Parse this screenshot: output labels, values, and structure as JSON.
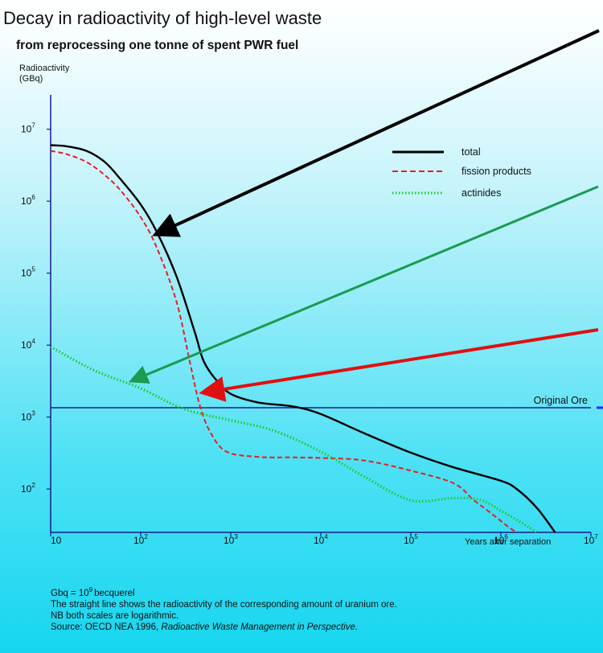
{
  "chart_data": {
    "type": "line",
    "title": "Decay in radioactivity of high-level waste",
    "subtitle": "from reprocessing one tonne of spent PWR fuel",
    "ylabel": [
      "Radioactivity",
      "(GBq)"
    ],
    "xlabel": "Years after separation",
    "x_scale": "log",
    "y_scale": "log",
    "xlim": [
      10,
      10000000
    ],
    "ylim": [
      25,
      30000000
    ],
    "x_ticks": [
      {
        "base": "10",
        "exp": ""
      },
      {
        "base": "10",
        "exp": "2"
      },
      {
        "base": "10",
        "exp": "3"
      },
      {
        "base": "10",
        "exp": "4"
      },
      {
        "base": "10",
        "exp": "5"
      },
      {
        "base": "10",
        "exp": "6"
      },
      {
        "base": "10",
        "exp": "7"
      }
    ],
    "y_ticks": [
      {
        "base": "10",
        "exp": "2"
      },
      {
        "base": "10",
        "exp": "3"
      },
      {
        "base": "10",
        "exp": "4"
      },
      {
        "base": "10",
        "exp": "5"
      },
      {
        "base": "10",
        "exp": "6"
      },
      {
        "base": "10",
        "exp": "7"
      }
    ],
    "series": [
      {
        "name": "total",
        "color": "#000000",
        "style": "solid",
        "points": [
          [
            10,
            6000000
          ],
          [
            15,
            5800000
          ],
          [
            25,
            5000000
          ],
          [
            40,
            3500000
          ],
          [
            60,
            2000000
          ],
          [
            100,
            900000
          ],
          [
            150,
            380000
          ],
          [
            250,
            90000
          ],
          [
            400,
            15000
          ],
          [
            500,
            6000
          ],
          [
            700,
            3200
          ],
          [
            1000,
            2100
          ],
          [
            2000,
            1600
          ],
          [
            5000,
            1400
          ],
          [
            10000,
            1100
          ],
          [
            30000,
            600
          ],
          [
            100000,
            320
          ],
          [
            300000,
            200
          ],
          [
            1000000,
            130
          ],
          [
            1500000,
            100
          ],
          [
            2500000,
            55
          ],
          [
            4000000,
            25
          ]
        ]
      },
      {
        "name": "fission products",
        "color": "#e62020",
        "style": "dashed",
        "points": [
          [
            10,
            5000000
          ],
          [
            15,
            4500000
          ],
          [
            25,
            3500000
          ],
          [
            40,
            2300000
          ],
          [
            60,
            1400000
          ],
          [
            100,
            600000
          ],
          [
            150,
            230000
          ],
          [
            250,
            40000
          ],
          [
            350,
            6000
          ],
          [
            450,
            1500
          ],
          [
            600,
            600
          ],
          [
            900,
            330
          ],
          [
            2000,
            280
          ],
          [
            5000,
            275
          ],
          [
            10000,
            270
          ],
          [
            30000,
            250
          ],
          [
            100000,
            180
          ],
          [
            300000,
            120
          ],
          [
            500000,
            70
          ],
          [
            800000,
            45
          ],
          [
            1200000,
            30
          ],
          [
            1500000,
            25
          ]
        ]
      },
      {
        "name": "actinides",
        "color": "#1ccc22",
        "style": "dotted",
        "points": [
          [
            10,
            9500
          ],
          [
            30,
            4500
          ],
          [
            100,
            2500
          ],
          [
            300,
            1300
          ],
          [
            1000,
            900
          ],
          [
            3000,
            650
          ],
          [
            10000,
            330
          ],
          [
            30000,
            150
          ],
          [
            100000,
            70
          ],
          [
            300000,
            75
          ],
          [
            600000,
            70
          ],
          [
            1000000,
            50
          ],
          [
            2000000,
            30
          ],
          [
            2500000,
            25
          ]
        ]
      }
    ],
    "reference_line": {
      "label": "Original Ore",
      "y": 1350,
      "color": "#1a1a8c"
    },
    "arrows": [
      {
        "name": "black",
        "color": "#000000",
        "tip": [
          150,
          350000
        ]
      },
      {
        "name": "green",
        "color": "#1a9b50",
        "tip": [
          80,
          3200
        ]
      },
      {
        "name": "red",
        "color": "#e01010",
        "tip": [
          500,
          2200
        ]
      }
    ],
    "legend": {
      "placement": "top-right"
    },
    "footnotes": {
      "gbq_prefix": "Gbq = 10",
      "gbq_exp": "9",
      "gbq_suffix": "becquerel",
      "line2": "The straight line shows the radioactivity of the corresponding amount of uranium ore.",
      "line3": "NB both scales are logarithmic.",
      "source_prefix": "Source: OECD NEA 1996, ",
      "source_italic": "Radioactive Waste Management in Perspective."
    }
  }
}
